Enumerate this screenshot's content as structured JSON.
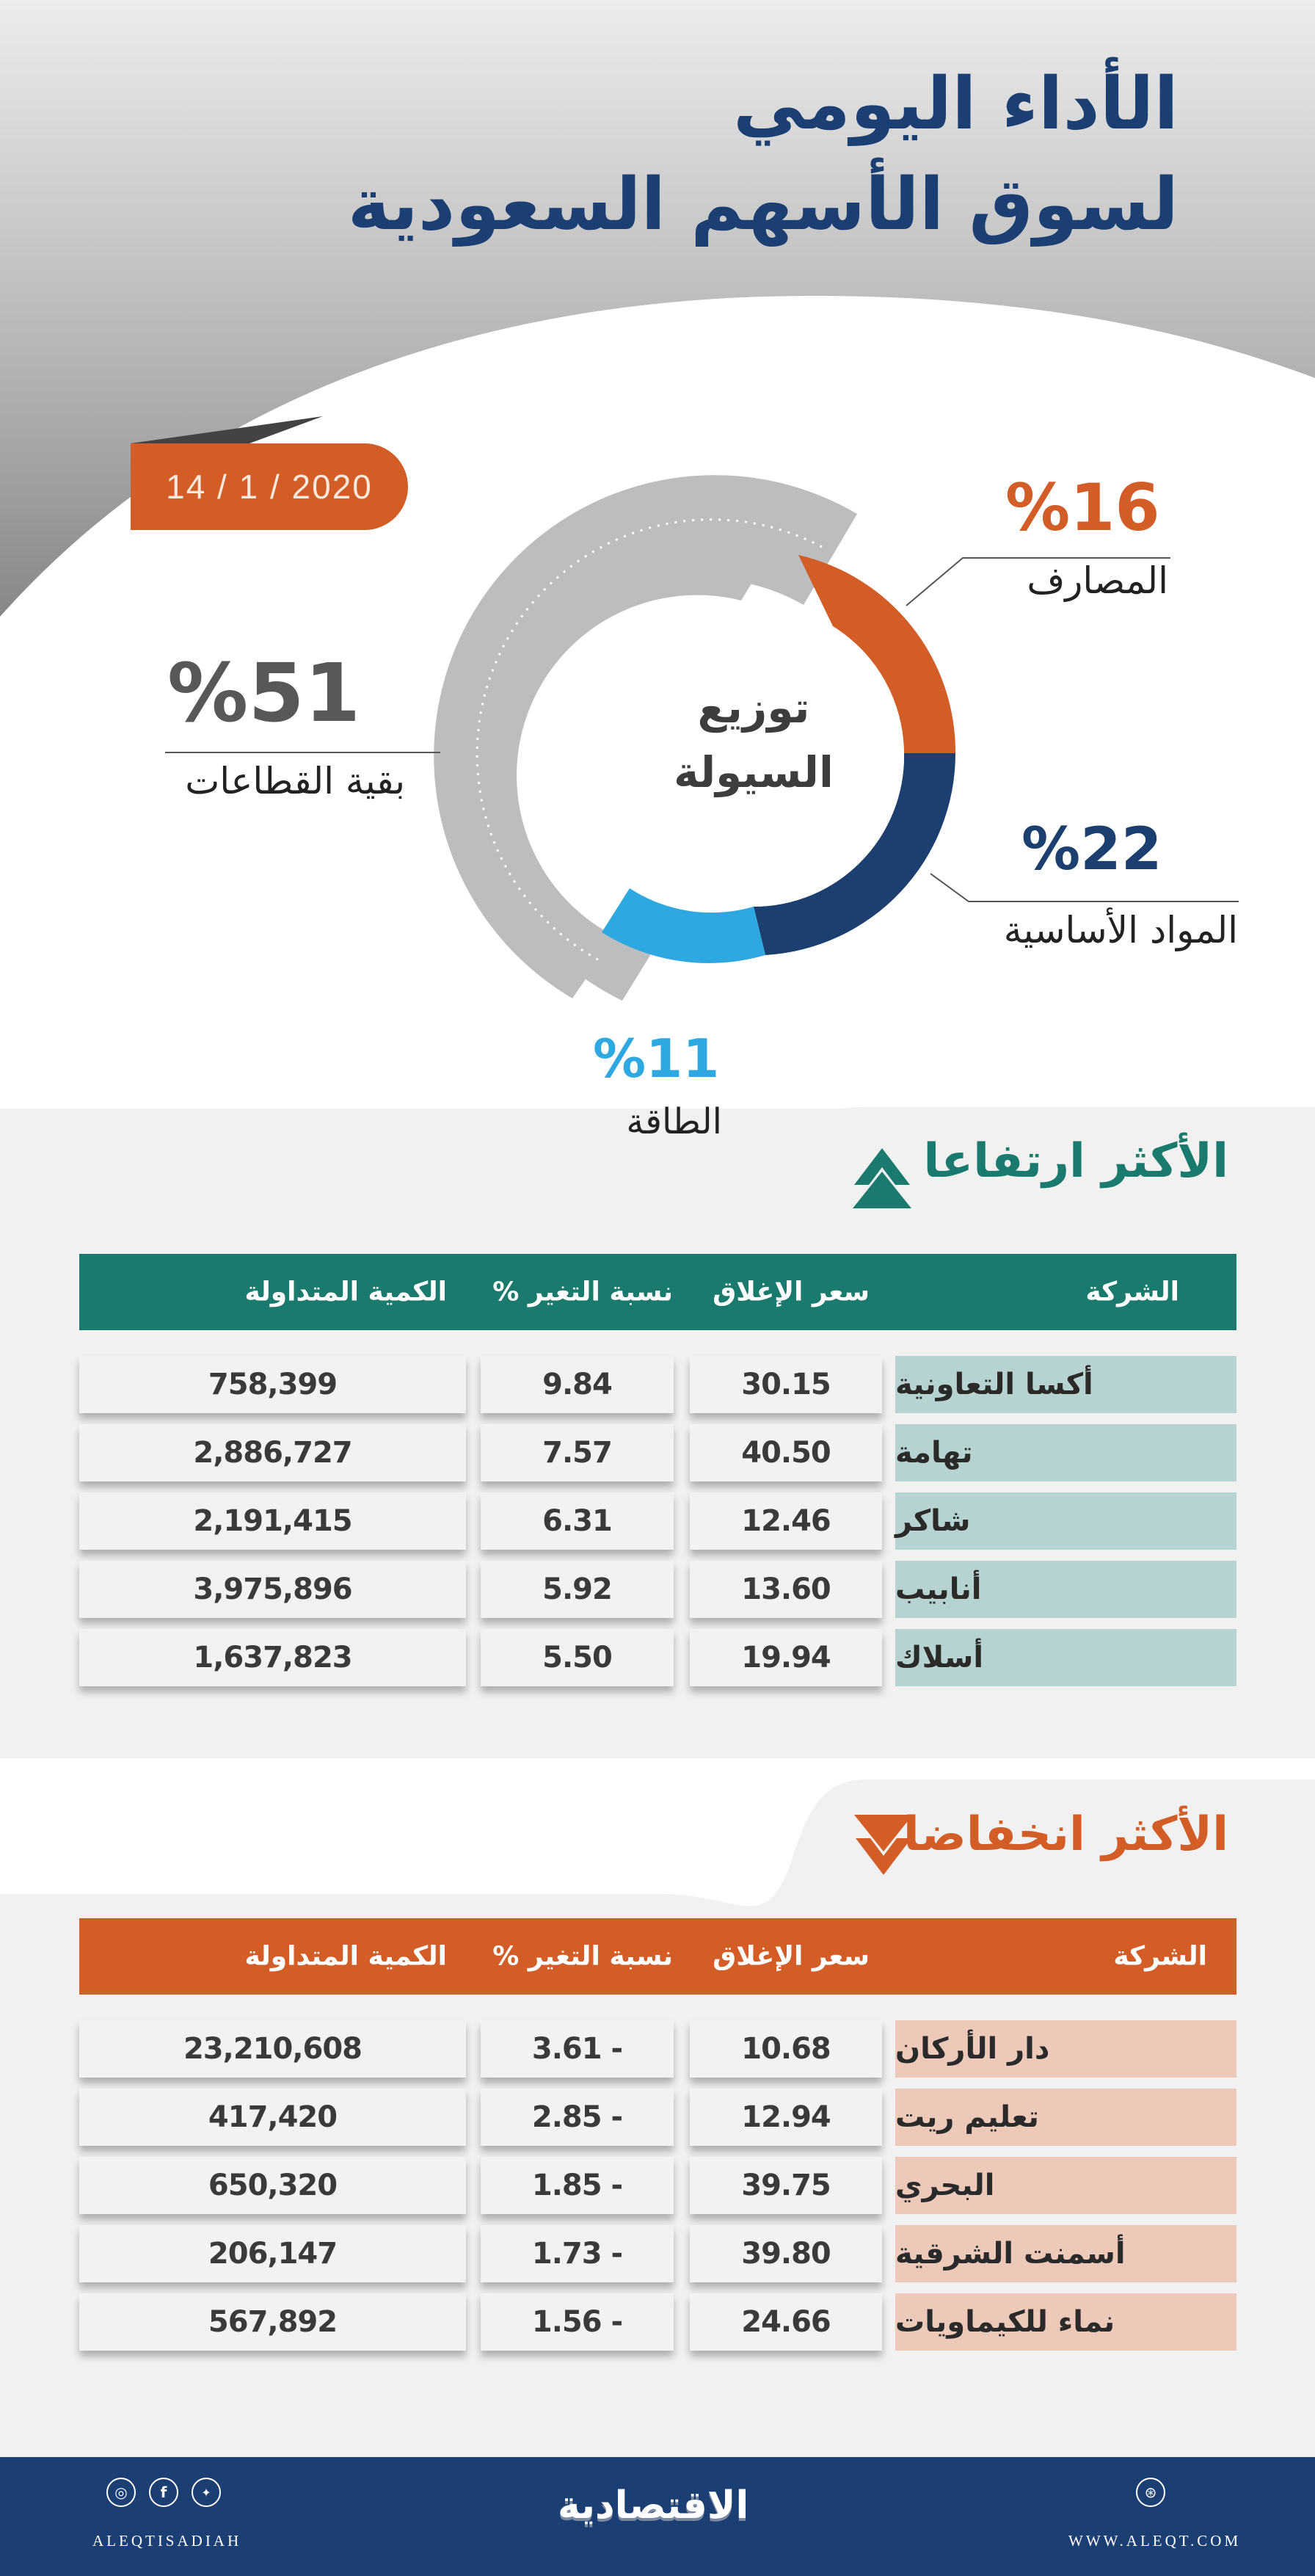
{
  "header": {
    "title_line1": "الأداء اليومي",
    "title_line2": "لسوق الأسهم السعودية",
    "date": "14 / 1 / 2020"
  },
  "liquidity": {
    "center_line1": "توزيع",
    "center_line2": "السيولة",
    "segments": [
      {
        "label": "المصارف",
        "percent_text": "%16",
        "value": 16,
        "color": "#d35d27"
      },
      {
        "label": "المواد الأساسية",
        "percent_text": "%22",
        "value": 22,
        "color": "#1b3f6e"
      },
      {
        "label": "الطاقة",
        "percent_text": "%11",
        "value": 11,
        "color": "#2ea8e0"
      },
      {
        "label": "بقية القطاعات",
        "percent_text": "%51",
        "value": 51,
        "color": "#bcbdbf"
      }
    ]
  },
  "chart_data": {
    "type": "pie",
    "title": "توزيع السيولة",
    "categories": [
      "المصارف",
      "المواد الأساسية",
      "الطاقة",
      "بقية القطاعات"
    ],
    "values": [
      16,
      22,
      11,
      51
    ],
    "colors": [
      "#d35d27",
      "#1b3f6e",
      "#2ea8e0",
      "#bcbdbf"
    ],
    "unit": "%",
    "style": "donut"
  },
  "gainers": {
    "title": "الأكثر ارتفاعا",
    "columns": {
      "company": "الشركة",
      "close": "سعر الإغلاق",
      "change": "نسبة التغير %",
      "volume": "الكمية المتداولة"
    },
    "rows": [
      {
        "company": "أكسا التعاونية",
        "close": "30.15",
        "change": "9.84",
        "volume": "758,399"
      },
      {
        "company": "تهامة",
        "close": "40.50",
        "change": "7.57",
        "volume": "2,886,727"
      },
      {
        "company": "شاكر",
        "close": "12.46",
        "change": "6.31",
        "volume": "2,191,415"
      },
      {
        "company": "أنابيب",
        "close": "13.60",
        "change": "5.92",
        "volume": "3,975,896"
      },
      {
        "company": "أسلاك",
        "close": "19.94",
        "change": "5.50",
        "volume": "1,637,823"
      }
    ]
  },
  "losers": {
    "title": "الأكثر انخفاضا",
    "columns": {
      "company": "الشركة",
      "close": "سعر الإغلاق",
      "change": "نسبة التغير %",
      "volume": "الكمية المتداولة"
    },
    "rows": [
      {
        "company": "دار الأركان",
        "close": "10.68",
        "change": "3.61 -",
        "volume": "23,210,608"
      },
      {
        "company": "تعليم ريت",
        "close": "12.94",
        "change": "2.85 -",
        "volume": "417,420"
      },
      {
        "company": "البحري",
        "close": "39.75",
        "change": "1.85 -",
        "volume": "650,320"
      },
      {
        "company": "أسمنت الشرقية",
        "close": "39.80",
        "change": "1.73 -",
        "volume": "206,147"
      },
      {
        "company": "نماء للكيماويات",
        "close": "24.66",
        "change": "1.56 -",
        "volume": "567,892"
      }
    ]
  },
  "footer": {
    "handle": "ALEQTISADIAH",
    "logo": "الاقتصادية",
    "website": "WWW.ALEQT.COM",
    "icons": [
      "instagram-icon",
      "facebook-icon",
      "twitter-icon",
      "dribbble-icon"
    ]
  },
  "colors": {
    "title_blue": "#1b3f72",
    "orange": "#d35d27",
    "teal": "#1a7a6d",
    "teal_name_cell": "#b6d2d1",
    "orange_name_cell": "#ecc9b9"
  }
}
